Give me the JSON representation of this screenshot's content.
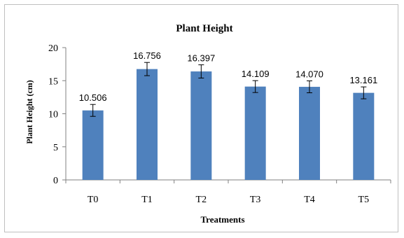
{
  "chart_data": {
    "type": "bar",
    "title": "Plant Height",
    "xlabel": "Treatments",
    "ylabel": "Plant Height (cm)",
    "categories": [
      "T0",
      "T1",
      "T2",
      "T3",
      "T4",
      "T5"
    ],
    "values": [
      10.506,
      16.756,
      16.397,
      14.109,
      14.07,
      13.161
    ],
    "data_labels": [
      "10.506",
      "16.756",
      "16.397",
      "14.109",
      "14.070",
      "13.161"
    ],
    "error": [
      0.9,
      1.0,
      1.0,
      0.9,
      0.9,
      0.9
    ],
    "ylim": [
      0,
      20
    ],
    "yticks": [
      "0",
      "5",
      "10",
      "15",
      "20"
    ],
    "grid": false,
    "bar_color": "#4f81bd",
    "legend": "none"
  }
}
